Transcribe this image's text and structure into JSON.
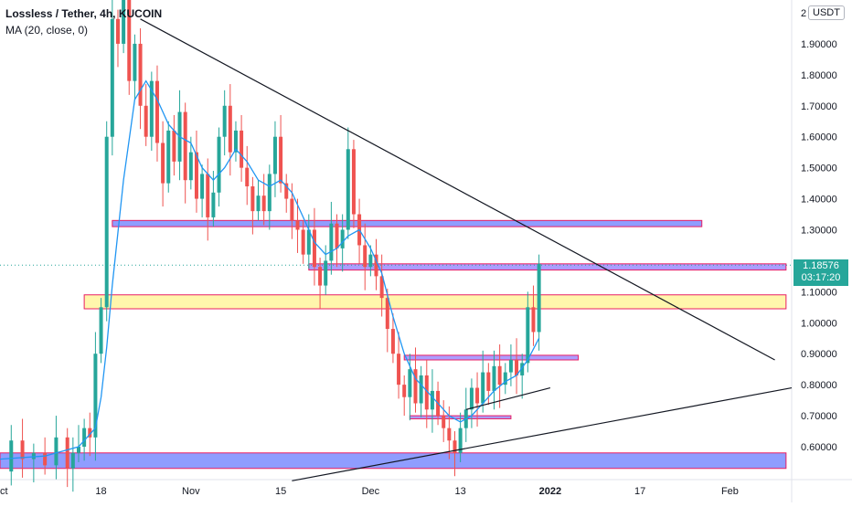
{
  "header": {
    "title": "Lossless / Tether, 4h, KUCOIN",
    "indicator": "MA (20, close, 0)",
    "currency": "USDT"
  },
  "last_price": {
    "price": "1.18576",
    "countdown": "03:17:20"
  },
  "colors": {
    "up": "#26a69a",
    "down": "#ef5350",
    "ma": "#2196f3",
    "zone_blue": "#6b7cff",
    "zone_yellow": "#fff176",
    "zone_border": "#e91e63"
  },
  "chart_data": {
    "type": "candlestick",
    "title": "Lossless / Tether, 4h, KUCOIN",
    "ylim": [
      0.55,
      2.0
    ],
    "y_ticks": [
      "0.60000",
      "0.70000",
      "0.80000",
      "0.90000",
      "1.00000",
      "1.10000",
      "1.30000",
      "1.40000",
      "1.50000",
      "1.60000",
      "1.70000",
      "1.80000",
      "1.90000",
      "2"
    ],
    "y_tick_values": [
      0.6,
      0.7,
      0.8,
      0.9,
      1.0,
      1.1,
      1.3,
      1.4,
      1.5,
      1.6,
      1.7,
      1.8,
      1.9,
      2.0
    ],
    "x_ticks": [
      "ct",
      "18",
      "Nov",
      "15",
      "Dec",
      "13",
      "2022",
      "17",
      "Feb"
    ],
    "x_tick_positions": [
      0,
      18,
      34,
      50,
      66,
      82,
      98,
      114,
      130
    ],
    "x_range": [
      0,
      140
    ],
    "last_price": 1.18576,
    "price_path": [
      [
        0,
        0.52
      ],
      [
        2,
        0.62
      ],
      [
        4,
        0.56
      ],
      [
        6,
        0.58
      ],
      [
        8,
        0.54
      ],
      [
        10,
        0.63
      ],
      [
        12,
        0.53
      ],
      [
        13,
        0.58
      ],
      [
        14,
        0.6
      ],
      [
        15,
        0.66
      ],
      [
        16,
        0.63
      ],
      [
        17,
        0.9
      ],
      [
        18,
        1.05
      ],
      [
        19,
        1.6
      ],
      [
        20,
        1.98
      ],
      [
        21,
        1.9
      ],
      [
        22,
        2.05
      ],
      [
        23,
        1.78
      ],
      [
        24,
        1.9
      ],
      [
        25,
        1.7
      ],
      [
        26,
        1.6
      ],
      [
        27,
        1.78
      ],
      [
        28,
        1.58
      ],
      [
        29,
        1.45
      ],
      [
        30,
        1.62
      ],
      [
        31,
        1.52
      ],
      [
        32,
        1.68
      ],
      [
        33,
        1.46
      ],
      [
        34,
        1.55
      ],
      [
        35,
        1.4
      ],
      [
        36,
        1.48
      ],
      [
        37,
        1.34
      ],
      [
        38,
        1.42
      ],
      [
        39,
        1.6
      ],
      [
        40,
        1.7
      ],
      [
        41,
        1.55
      ],
      [
        42,
        1.62
      ],
      [
        43,
        1.5
      ],
      [
        44,
        1.44
      ],
      [
        45,
        1.36
      ],
      [
        46,
        1.41
      ],
      [
        47,
        1.36
      ],
      [
        48,
        1.48
      ],
      [
        49,
        1.6
      ],
      [
        50,
        1.45
      ],
      [
        51,
        1.4
      ],
      [
        52,
        1.33
      ],
      [
        53,
        1.3
      ],
      [
        54,
        1.22
      ],
      [
        55,
        1.3
      ],
      [
        56,
        1.18
      ],
      [
        57,
        1.12
      ],
      [
        58,
        1.2
      ],
      [
        59,
        1.32
      ],
      [
        60,
        1.24
      ],
      [
        61,
        1.3
      ],
      [
        62,
        1.56
      ],
      [
        63,
        1.35
      ],
      [
        64,
        1.25
      ],
      [
        65,
        1.18
      ],
      [
        66,
        1.22
      ],
      [
        67,
        1.15
      ],
      [
        68,
        1.08
      ],
      [
        69,
        0.98
      ],
      [
        70,
        0.9
      ],
      [
        71,
        0.8
      ],
      [
        72,
        0.76
      ],
      [
        73,
        0.85
      ],
      [
        74,
        0.74
      ],
      [
        75,
        0.83
      ],
      [
        76,
        0.72
      ],
      [
        77,
        0.78
      ],
      [
        78,
        0.7
      ],
      [
        79,
        0.66
      ],
      [
        80,
        0.62
      ],
      [
        81,
        0.58
      ],
      [
        82,
        0.66
      ],
      [
        83,
        0.72
      ],
      [
        84,
        0.79
      ],
      [
        85,
        0.74
      ],
      [
        86,
        0.84
      ],
      [
        87,
        0.78
      ],
      [
        88,
        0.86
      ],
      [
        89,
        0.8
      ],
      [
        90,
        0.84
      ],
      [
        91,
        0.88
      ],
      [
        92,
        0.83
      ],
      [
        93,
        0.87
      ],
      [
        94,
        1.05
      ],
      [
        95,
        0.97
      ],
      [
        96,
        1.19
      ]
    ],
    "ma_path": [
      [
        0,
        0.56
      ],
      [
        8,
        0.57
      ],
      [
        14,
        0.6
      ],
      [
        17,
        0.66
      ],
      [
        18,
        0.76
      ],
      [
        19,
        0.92
      ],
      [
        20,
        1.12
      ],
      [
        22,
        1.46
      ],
      [
        24,
        1.72
      ],
      [
        26,
        1.78
      ],
      [
        28,
        1.72
      ],
      [
        30,
        1.64
      ],
      [
        32,
        1.6
      ],
      [
        34,
        1.58
      ],
      [
        36,
        1.5
      ],
      [
        38,
        1.46
      ],
      [
        40,
        1.5
      ],
      [
        42,
        1.56
      ],
      [
        44,
        1.52
      ],
      [
        46,
        1.46
      ],
      [
        48,
        1.44
      ],
      [
        50,
        1.46
      ],
      [
        52,
        1.42
      ],
      [
        54,
        1.34
      ],
      [
        56,
        1.26
      ],
      [
        58,
        1.22
      ],
      [
        60,
        1.24
      ],
      [
        62,
        1.28
      ],
      [
        64,
        1.3
      ],
      [
        66,
        1.24
      ],
      [
        68,
        1.16
      ],
      [
        70,
        1.02
      ],
      [
        72,
        0.9
      ],
      [
        74,
        0.82
      ],
      [
        76,
        0.78
      ],
      [
        78,
        0.74
      ],
      [
        80,
        0.7
      ],
      [
        82,
        0.68
      ],
      [
        84,
        0.7
      ],
      [
        86,
        0.74
      ],
      [
        88,
        0.78
      ],
      [
        90,
        0.81
      ],
      [
        92,
        0.83
      ],
      [
        94,
        0.88
      ],
      [
        96,
        0.95
      ]
    ],
    "zones": [
      {
        "y_top": 1.33,
        "y_bottom": 1.31,
        "x_start": 20,
        "x_end": 125,
        "fill": "blue"
      },
      {
        "y_top": 1.19,
        "y_bottom": 1.17,
        "x_start": 55,
        "x_end": 140,
        "fill": "purple"
      },
      {
        "y_top": 1.09,
        "y_bottom": 1.045,
        "x_start": 15,
        "x_end": 140,
        "fill": "yellow"
      },
      {
        "y_top": 0.895,
        "y_bottom": 0.88,
        "x_start": 72,
        "x_end": 103,
        "fill": "purple"
      },
      {
        "y_top": 0.7,
        "y_bottom": 0.69,
        "x_start": 73,
        "x_end": 91,
        "fill": "purple"
      },
      {
        "y_top": 0.58,
        "y_bottom": 0.53,
        "x_start": 0,
        "x_end": 140,
        "fill": "blue"
      }
    ],
    "trendlines": [
      {
        "x1": 25,
        "y1": 1.98,
        "x2": 138,
        "y2": 0.88
      },
      {
        "x1": 52,
        "y1": 0.49,
        "x2": 144,
        "y2": 0.79
      },
      {
        "x1": 83,
        "y1": 0.72,
        "x2": 98,
        "y2": 0.79
      }
    ]
  }
}
